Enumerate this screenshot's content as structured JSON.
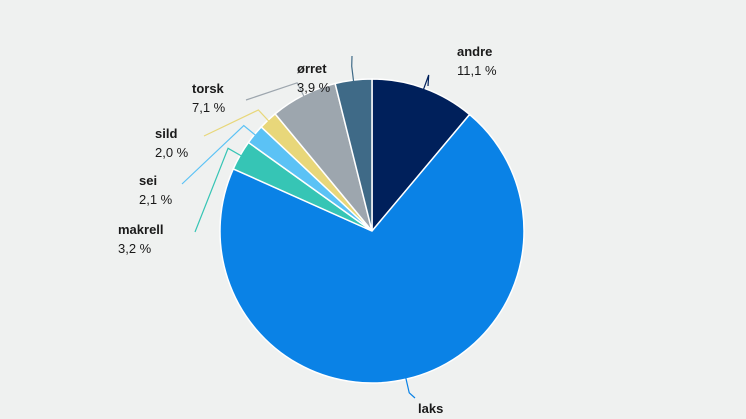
{
  "chart_data": {
    "type": "pie",
    "categories": [
      "andre",
      "laks",
      "makrell",
      "sei",
      "sild",
      "torsk",
      "ørret"
    ],
    "values": [
      11.1,
      70.6,
      3.2,
      2.1,
      2.0,
      7.1,
      3.9
    ],
    "value_labels": [
      "11,1 %",
      null,
      "3,2 %",
      "2,1 %",
      "2,0 %",
      "7,1 %",
      "3,9 %"
    ],
    "colors": [
      "#00205b",
      "#0a82e6",
      "#36c5b5",
      "#5bc2f5",
      "#e8d77a",
      "#9da6ae",
      "#3f6a87"
    ]
  }
}
